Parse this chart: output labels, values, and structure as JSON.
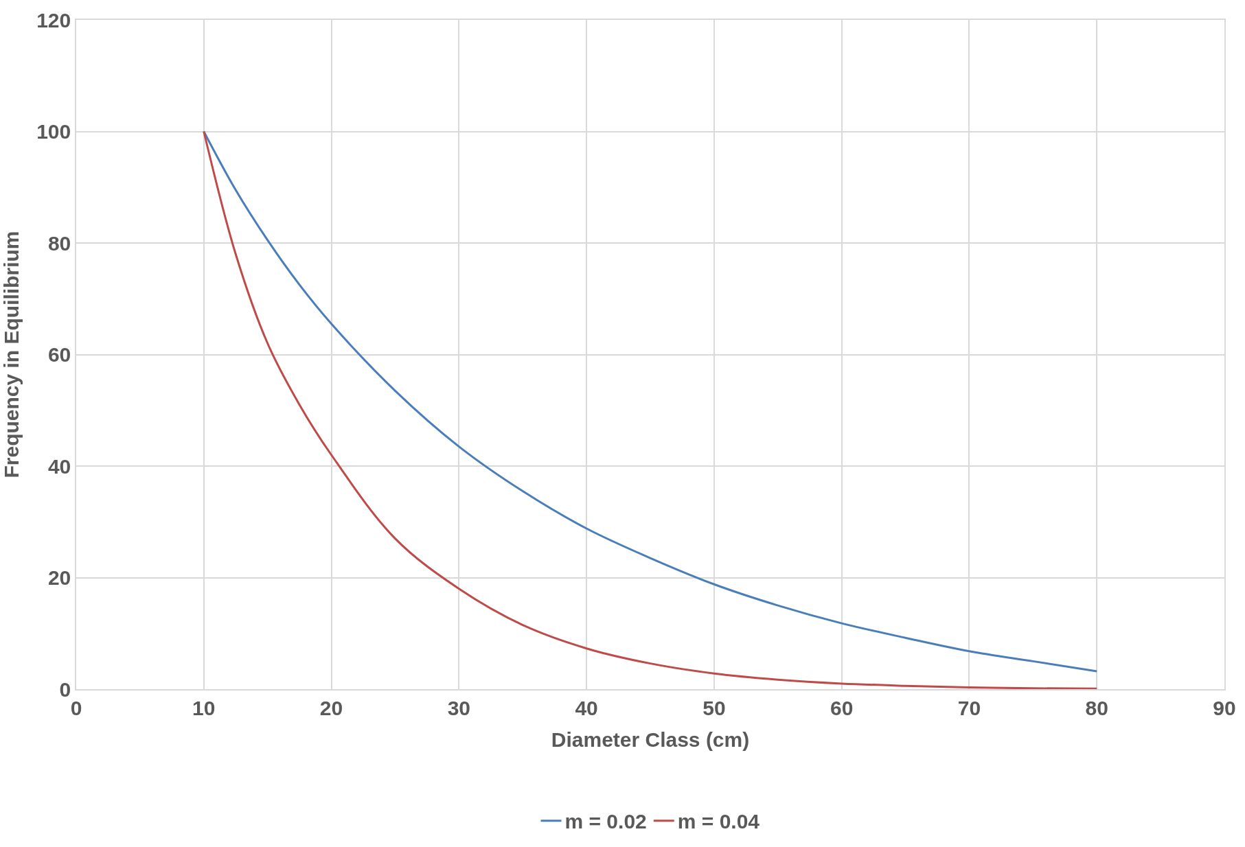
{
  "chart_data": {
    "type": "line",
    "xlabel": "Diameter Class (cm)",
    "ylabel": "Frequency in Equilibrium",
    "x": [
      10,
      12.5,
      15,
      17.5,
      20,
      25,
      30,
      35,
      40,
      45,
      50,
      55,
      60,
      65,
      70,
      75,
      80
    ],
    "series": [
      {
        "name": "m = 0.02",
        "color": "#4a7ebb",
        "values": [
          100,
          89.5,
          80.5,
          72.5,
          65.5,
          53.5,
          43.5,
          35.5,
          28.8,
          23.5,
          18.8,
          15,
          11.8,
          9.2,
          6.8,
          5,
          3.2
        ]
      },
      {
        "name": "m = 0.04",
        "color": "#be4b48",
        "values": [
          100,
          78,
          62,
          51,
          42,
          27,
          18,
          11.5,
          7.3,
          4.6,
          2.8,
          1.7,
          1,
          0.6,
          0.3,
          0.15,
          0.1
        ]
      }
    ],
    "xlim": [
      0,
      90
    ],
    "xticks": [
      0,
      10,
      20,
      30,
      40,
      50,
      60,
      70,
      80,
      90
    ],
    "ylim": [
      0,
      120
    ],
    "yticks": [
      0,
      20,
      40,
      60,
      80,
      100,
      120
    ],
    "grid": true,
    "legend": "bottom",
    "marker": "none",
    "line_style": "solid"
  }
}
